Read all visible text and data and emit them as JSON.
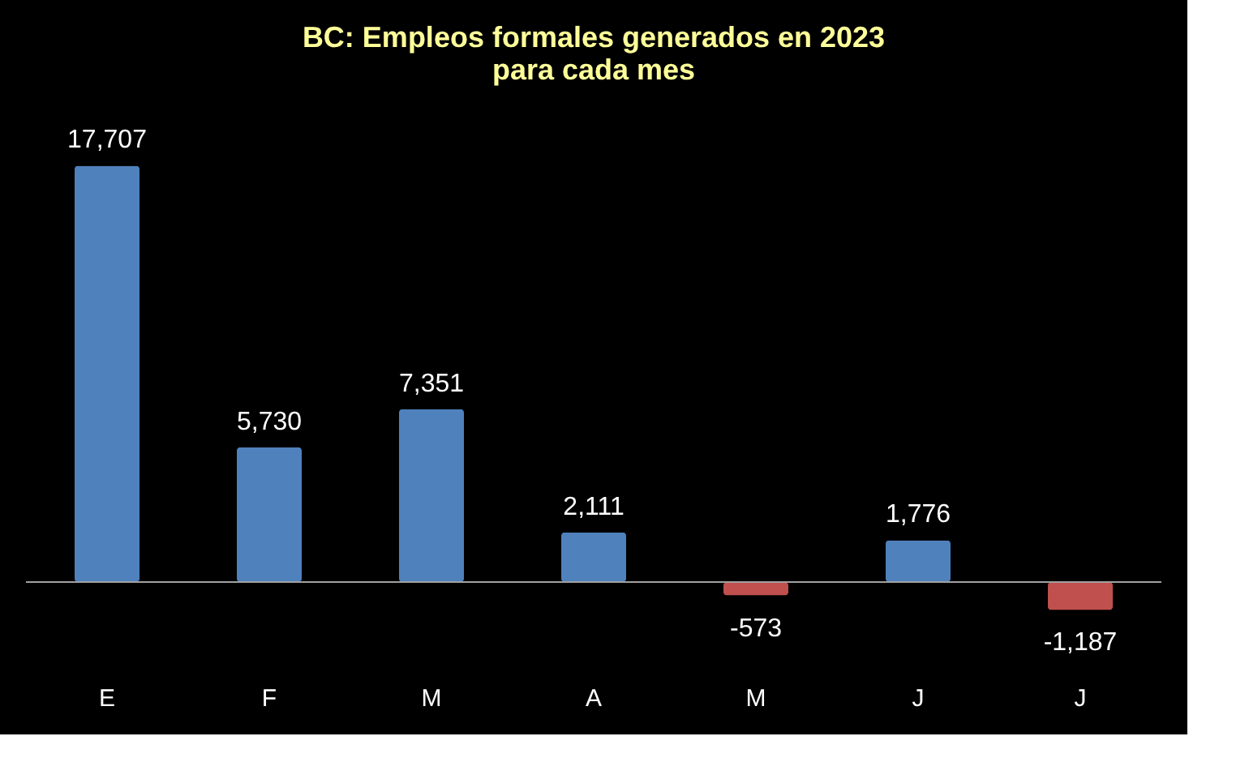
{
  "chart_data": {
    "type": "bar",
    "title": "BC: Empleos formales generados en 2023\npara cada mes",
    "categories": [
      "E",
      "F",
      "M",
      "A",
      "M",
      "J",
      "J"
    ],
    "values": [
      17707,
      5730,
      7351,
      2111,
      -573,
      1776,
      -1187
    ],
    "colors": [
      "#4f81bd",
      "#4f81bd",
      "#4f81bd",
      "#4f81bd",
      "#c0504d",
      "#4f81bd",
      "#c0504d"
    ],
    "value_labels": [
      "17,707",
      "5,730",
      "7,351",
      "2,111",
      "-573",
      "1,776",
      "-1,187"
    ],
    "grid": false
  }
}
